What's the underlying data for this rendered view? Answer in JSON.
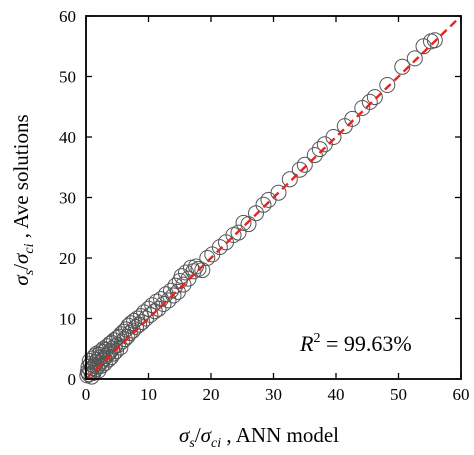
{
  "chart_data": {
    "type": "scatter",
    "xlabel": "σs/σci , ANN model",
    "ylabel": "σs/σci , Ave solutions",
    "xlabel_parts": {
      "n1": "σ",
      "s1": "s",
      "slash": "/",
      "n2": "σ",
      "s2": "ci",
      "rest": " , ANN model"
    },
    "ylabel_parts": {
      "n1": "σ",
      "s1": "s",
      "slash": "/",
      "n2": "σ",
      "s2": "ci",
      "rest": " , Ave solutions"
    },
    "xlim": [
      0,
      60
    ],
    "ylim": [
      0,
      60
    ],
    "xticks": [
      0,
      10,
      20,
      30,
      40,
      50,
      60
    ],
    "yticks": [
      0,
      10,
      20,
      30,
      40,
      50,
      60
    ],
    "grid": false,
    "reference_line": {
      "from": [
        0,
        0
      ],
      "to": [
        60,
        60
      ],
      "color": "#e8221e",
      "style": "dashed"
    },
    "marker": {
      "shape": "open-circle",
      "color": "#555555"
    },
    "annotation": {
      "base": "R",
      "power": "2",
      "rest": " = 99.63%"
    },
    "points": [
      [
        0.2,
        0.6
      ],
      [
        0.3,
        1.2
      ],
      [
        0.4,
        2.0
      ],
      [
        0.5,
        0.8
      ],
      [
        0.6,
        3.0
      ],
      [
        0.7,
        1.5
      ],
      [
        0.8,
        2.5
      ],
      [
        0.9,
        0.4
      ],
      [
        1.0,
        1.8
      ],
      [
        1.1,
        3.4
      ],
      [
        1.2,
        1.0
      ],
      [
        1.3,
        2.2
      ],
      [
        1.4,
        3.8
      ],
      [
        1.5,
        1.6
      ],
      [
        1.6,
        2.8
      ],
      [
        1.7,
        4.2
      ],
      [
        1.8,
        2.0
      ],
      [
        1.9,
        3.2
      ],
      [
        2.0,
        1.4
      ],
      [
        2.1,
        4.0
      ],
      [
        2.2,
        2.6
      ],
      [
        2.3,
        3.6
      ],
      [
        2.4,
        4.6
      ],
      [
        2.5,
        2.2
      ],
      [
        2.6,
        3.0
      ],
      [
        2.7,
        4.4
      ],
      [
        2.8,
        5.0
      ],
      [
        2.9,
        3.4
      ],
      [
        3.0,
        2.6
      ],
      [
        3.2,
        4.8
      ],
      [
        3.3,
        3.8
      ],
      [
        3.4,
        5.4
      ],
      [
        3.5,
        4.2
      ],
      [
        3.6,
        3.2
      ],
      [
        3.8,
        5.8
      ],
      [
        3.9,
        4.6
      ],
      [
        4.0,
        3.6
      ],
      [
        4.1,
        6.0
      ],
      [
        4.2,
        5.0
      ],
      [
        4.4,
        4.2
      ],
      [
        4.5,
        6.4
      ],
      [
        4.6,
        5.4
      ],
      [
        4.8,
        4.6
      ],
      [
        5.0,
        6.8
      ],
      [
        5.1,
        5.6
      ],
      [
        5.3,
        7.0
      ],
      [
        5.5,
        5.2
      ],
      [
        5.6,
        7.4
      ],
      [
        5.8,
        6.2
      ],
      [
        6.0,
        7.8
      ],
      [
        6.2,
        6.6
      ],
      [
        6.4,
        8.2
      ],
      [
        6.6,
        7.0
      ],
      [
        6.8,
        8.8
      ],
      [
        7.0,
        7.6
      ],
      [
        7.2,
        9.2
      ],
      [
        7.5,
        8.0
      ],
      [
        7.7,
        9.6
      ],
      [
        8.0,
        8.6
      ],
      [
        8.2,
        10.0
      ],
      [
        8.5,
        9.0
      ],
      [
        8.8,
        10.4
      ],
      [
        9.0,
        9.4
      ],
      [
        9.3,
        11.0
      ],
      [
        9.6,
        10.0
      ],
      [
        10.0,
        11.6
      ],
      [
        10.3,
        10.6
      ],
      [
        10.6,
        12.2
      ],
      [
        11.0,
        11.2
      ],
      [
        11.3,
        12.8
      ],
      [
        11.6,
        11.6
      ],
      [
        12.0,
        13.2
      ],
      [
        12.4,
        12.4
      ],
      [
        12.8,
        14.0
      ],
      [
        13.2,
        13.0
      ],
      [
        13.6,
        14.6
      ],
      [
        14.0,
        13.8
      ],
      [
        14.3,
        15.4
      ],
      [
        14.7,
        14.4
      ],
      [
        15.0,
        16.2
      ],
      [
        15.3,
        17.0
      ],
      [
        15.6,
        15.6
      ],
      [
        16.0,
        17.6
      ],
      [
        16.4,
        16.6
      ],
      [
        16.8,
        18.4
      ],
      [
        17.2,
        17.8
      ],
      [
        17.6,
        18.6
      ],
      [
        18.0,
        18.2
      ],
      [
        18.6,
        18.0
      ],
      [
        19.4,
        20.0
      ],
      [
        20.2,
        20.6
      ],
      [
        21.4,
        21.8
      ],
      [
        22.4,
        22.6
      ],
      [
        23.6,
        23.8
      ],
      [
        24.4,
        24.2
      ],
      [
        25.2,
        25.8
      ],
      [
        26.0,
        25.6
      ],
      [
        27.2,
        27.4
      ],
      [
        28.4,
        28.8
      ],
      [
        29.2,
        29.6
      ],
      [
        30.8,
        30.8
      ],
      [
        32.6,
        33.0
      ],
      [
        34.2,
        34.6
      ],
      [
        35.0,
        35.4
      ],
      [
        36.6,
        37.0
      ],
      [
        37.4,
        38.0
      ],
      [
        38.2,
        38.8
      ],
      [
        39.6,
        40.0
      ],
      [
        41.4,
        41.8
      ],
      [
        42.6,
        43.0
      ],
      [
        44.2,
        44.8
      ],
      [
        45.4,
        45.8
      ],
      [
        46.2,
        46.6
      ],
      [
        48.2,
        48.6
      ],
      [
        50.6,
        51.6
      ],
      [
        52.6,
        53.0
      ],
      [
        54.0,
        55.0
      ],
      [
        55.2,
        55.8
      ],
      [
        55.8,
        56.0
      ]
    ]
  }
}
